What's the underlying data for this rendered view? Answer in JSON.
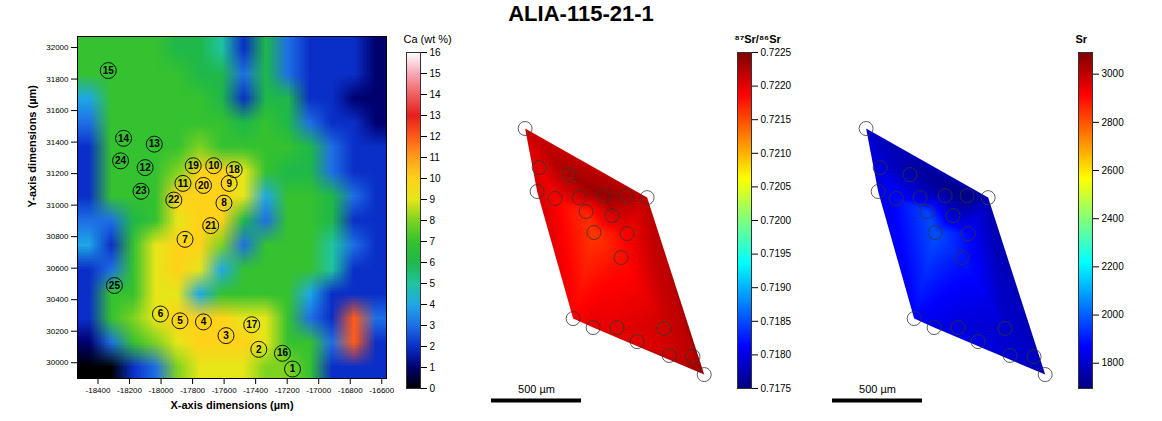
{
  "title": "ALIA-115-21-1",
  "chart_data": [
    {
      "type": "heatmap",
      "x_label": "X-axis dimensions (µm)",
      "y_label": "Y-axis dimensions (µm)",
      "xlim": [
        -18530,
        -16570
      ],
      "ylim": [
        29900,
        32070
      ],
      "xticks": [
        -18400,
        -18200,
        -18000,
        -17800,
        -17600,
        -17400,
        -17200,
        -17000,
        -16800,
        -16600
      ],
      "yticks": [
        30000,
        30200,
        30400,
        30600,
        30800,
        31000,
        31200,
        31400,
        31600,
        31800,
        32000
      ],
      "cells": [
        [
          7,
          7,
          7,
          7,
          6,
          6,
          5,
          2,
          6,
          3,
          2,
          2,
          2,
          1
        ],
        [
          7,
          7,
          7,
          7,
          7,
          6,
          6,
          3,
          6,
          3,
          2,
          2,
          2,
          1
        ],
        [
          4,
          7,
          7,
          7,
          7,
          7,
          6,
          2,
          6,
          6,
          2,
          2,
          1,
          1
        ],
        [
          3,
          7,
          7,
          7,
          7,
          7,
          7,
          6,
          7,
          6,
          3,
          2,
          2,
          1
        ],
        [
          2,
          7,
          7,
          7,
          7,
          8,
          7,
          7,
          7,
          7,
          6,
          3,
          2,
          2
        ],
        [
          2,
          7,
          7,
          7,
          8,
          10,
          10,
          9,
          7,
          6,
          6,
          3,
          2,
          2
        ],
        [
          2,
          7,
          7,
          7,
          10,
          10,
          10,
          9,
          4,
          7,
          7,
          6,
          3,
          2
        ],
        [
          3,
          3,
          6,
          7,
          9,
          10,
          10,
          6,
          3,
          7,
          7,
          6,
          2,
          2
        ],
        [
          4,
          2,
          7,
          9,
          10,
          10,
          8,
          3,
          7,
          7,
          7,
          5,
          3,
          2
        ],
        [
          2,
          3,
          7,
          9,
          10,
          9,
          4,
          7,
          7,
          7,
          7,
          5,
          2,
          2
        ],
        [
          2,
          7,
          7,
          9,
          9,
          4,
          7,
          7,
          7,
          7,
          4,
          2,
          2,
          2
        ],
        [
          2,
          7,
          8,
          9,
          10,
          10,
          10,
          9,
          9,
          7,
          3,
          2,
          12,
          3
        ],
        [
          1,
          3,
          7,
          8,
          9,
          10,
          10,
          10,
          9,
          7,
          7,
          3,
          12,
          2
        ],
        [
          0,
          0,
          2,
          3,
          8,
          9,
          9,
          9,
          8,
          8,
          7,
          2,
          2,
          2
        ]
      ],
      "colorbar": {
        "label": "Ca (wt %)",
        "range": [
          0,
          16
        ],
        "ticks": [
          0,
          1,
          2,
          3,
          4,
          5,
          6,
          7,
          8,
          9,
          10,
          11,
          12,
          13,
          14,
          15,
          16
        ]
      },
      "spots": {
        "labels": [
          1,
          2,
          3,
          4,
          5,
          6,
          7,
          8,
          9,
          10,
          11,
          12,
          13,
          14,
          15,
          16,
          17,
          18,
          19,
          20,
          21,
          22,
          23,
          24,
          25
        ],
        "x": [
          -17166,
          -17380,
          -17588,
          -17731,
          -17880,
          -18004,
          -17848,
          -17601,
          -17568,
          -17666,
          -17861,
          -18101,
          -18043,
          -18238,
          -18335,
          -17230,
          -17425,
          -17536,
          -17796,
          -17731,
          -17685,
          -17919,
          -18127,
          -18257,
          -18296
        ],
        "y": [
          29960,
          30085,
          30172,
          30259,
          30266,
          30309,
          30783,
          31013,
          31138,
          31250,
          31138,
          31238,
          31387,
          31424,
          31854,
          30060,
          30241,
          31225,
          31250,
          31125,
          30870,
          31032,
          31088,
          31281,
          30490
        ]
      }
    },
    {
      "type": "interpolated_map",
      "spots": {
        "x": [
          0,
          78,
          67,
          244,
          167,
          300,
          439,
          561,
          678,
          483,
          339,
          383,
          567,
          533,
          267,
          378,
          511,
          622,
          772,
          800,
          933,
          995
        ],
        "y": [
          1367,
          1150,
          1017,
          1111,
          978,
          983,
          994,
          994,
          983,
          883,
          906,
          789,
          783,
          650,
          311,
          261,
          261,
          183,
          256,
          106,
          100,
          0
        ],
        "values": [
          0.7221,
          0.722,
          0.7221,
          0.7223,
          0.7219,
          0.7221,
          0.7224,
          0.7223,
          0.7222,
          0.7221,
          0.7217,
          0.7216,
          0.7219,
          0.7218,
          0.7219,
          0.722,
          0.722,
          0.722,
          0.7221,
          0.7221,
          0.7222,
          0.7224
        ]
      },
      "scale_bar": {
        "length": 500,
        "label": "500 µm"
      },
      "colorbar": {
        "label": "⁸⁷Sr/⁸⁶Sr",
        "range": [
          0.7175,
          0.7225
        ],
        "ticks": [
          0.7175,
          {
            "value": 0.718,
            "label": "0.7180"
          },
          0.7185,
          {
            "value": 0.719,
            "label": "0.7190"
          },
          0.7195,
          {
            "value": 0.72,
            "label": "0.7200"
          },
          0.7205,
          {
            "value": 0.721,
            "label": "0.7210"
          },
          0.7215,
          {
            "value": 0.722,
            "label": "0.7220"
          },
          0.7225
        ]
      }
    },
    {
      "type": "interpolated_map",
      "spots": {
        "x": [
          0,
          78,
          67,
          244,
          167,
          300,
          439,
          561,
          678,
          483,
          339,
          383,
          567,
          533,
          267,
          378,
          511,
          622,
          772,
          800,
          933,
          995
        ],
        "y": [
          1367,
          1150,
          1017,
          1111,
          978,
          983,
          994,
          994,
          983,
          883,
          906,
          789,
          783,
          650,
          311,
          261,
          261,
          183,
          256,
          106,
          100,
          0
        ],
        "values": [
          1800,
          1820,
          1830,
          1760,
          1880,
          1820,
          1750,
          1700,
          1760,
          1800,
          1960,
          1980,
          1880,
          1900,
          1870,
          1840,
          1820,
          1830,
          1800,
          1810,
          1790,
          1760
        ]
      },
      "scale_bar": {
        "length": 500,
        "label": "500 µm"
      },
      "colorbar": {
        "label": "Sr",
        "range": [
          1695,
          3090
        ],
        "ticks": [
          1800,
          2000,
          2200,
          2400,
          2600,
          2800,
          3000
        ]
      }
    }
  ]
}
